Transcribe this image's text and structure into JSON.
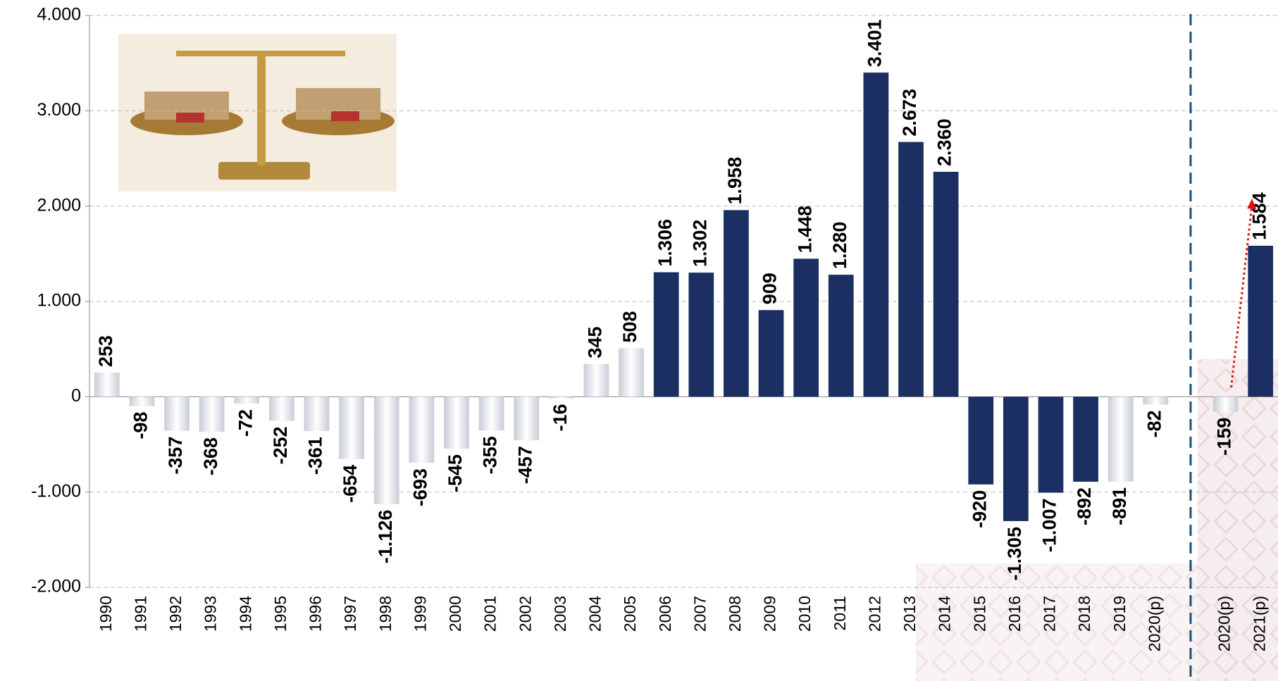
{
  "chart_data": {
    "type": "bar",
    "categories": [
      "1990",
      "1991",
      "1992",
      "1993",
      "1994",
      "1995",
      "1996",
      "1997",
      "1998",
      "1999",
      "2000",
      "2001",
      "2002",
      "2003",
      "2004",
      "2005",
      "2006",
      "2007",
      "2008",
      "2009",
      "2010",
      "2011",
      "2012",
      "2013",
      "2014",
      "2015",
      "2016",
      "2017",
      "2018",
      "2019",
      "2020(p)",
      "2020(p)",
      "2021(p)"
    ],
    "values": [
      253,
      -98,
      -357,
      -368,
      -72,
      -252,
      -361,
      -654,
      -1126,
      -693,
      -545,
      -355,
      -457,
      -16,
      345,
      508,
      1306,
      1302,
      1958,
      909,
      1448,
      1280,
      3401,
      2673,
      2360,
      -920,
      -1305,
      -1007,
      -892,
      -891,
      -82,
      -159,
      1584
    ],
    "value_labels": [
      "253",
      "-98",
      "-357",
      "-368",
      "-72",
      "-252",
      "-361",
      "-654",
      "-1.126",
      "-693",
      "-545",
      "-355",
      "-457",
      "-16",
      "345",
      "508",
      "1.306",
      "1.302",
      "1.958",
      "909",
      "1.448",
      "1.280",
      "3.401",
      "2.673",
      "2.360",
      "-920",
      "-1.305",
      "-1.007",
      "-892",
      "-891",
      "-82",
      "-159",
      "1.584"
    ],
    "colors": [
      "#c9ccd6",
      "#c9ccd6",
      "#c9ccd6",
      "#c9ccd6",
      "#c9ccd6",
      "#c9ccd6",
      "#c9ccd6",
      "#c9ccd6",
      "#c9ccd6",
      "#c9ccd6",
      "#c9ccd6",
      "#c9ccd6",
      "#c9ccd6",
      "#c9ccd6",
      "#c9ccd6",
      "#c9ccd6",
      "#1b2f63",
      "#1b2f63",
      "#1b2f63",
      "#1b2f63",
      "#1b2f63",
      "#1b2f63",
      "#1b2f63",
      "#1b2f63",
      "#1b2f63",
      "#1b2f63",
      "#1b2f63",
      "#1b2f63",
      "#1b2f63",
      "#c9ccd6",
      "#c9ccd6",
      "#c9ccd6",
      "#1b2f63"
    ],
    "ylim": [
      -2000,
      4000
    ],
    "yticks": [
      {
        "value": -2000,
        "label": "-2.000"
      },
      {
        "value": -1000,
        "label": "-1.000"
      },
      0,
      {
        "value": 1000,
        "label": "1.000"
      },
      {
        "value": 2000,
        "label": "2.000"
      },
      {
        "value": 3000,
        "label": "3.000"
      },
      {
        "value": 4000,
        "label": "4.000"
      }
    ],
    "grid": true
  }
}
